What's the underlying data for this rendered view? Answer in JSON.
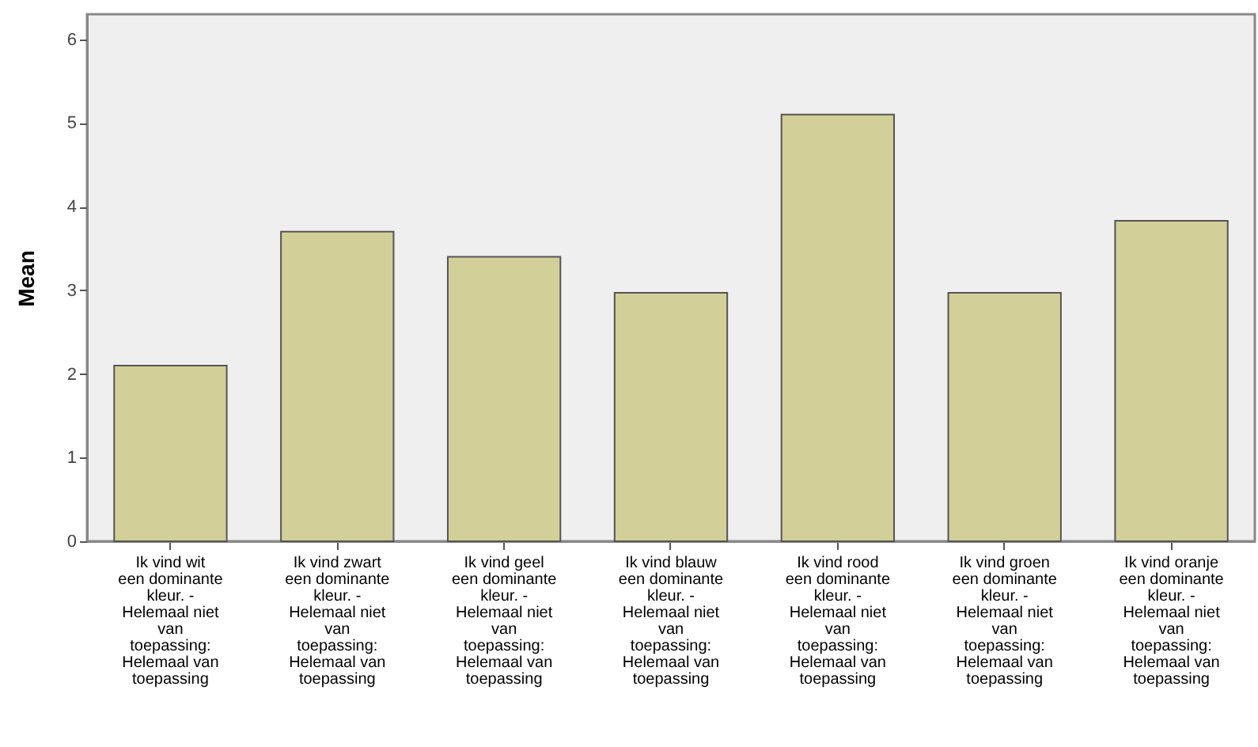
{
  "chart_data": {
    "type": "bar",
    "ylabel": "Mean",
    "categories": [
      "Ik vind wit een dominante kleur. - Helemaal niet van toepassing: Helemaal van toepassing",
      "Ik vind zwart een dominante kleur. - Helemaal niet van toepassing: Helemaal van toepassing",
      "Ik vind geel een dominante kleur. - Helemaal niet van toepassing: Helemaal van toepassing",
      "Ik vind blauw een dominante kleur. - Helemaal niet van toepassing: Helemaal van toepassing",
      "Ik vind rood een dominante kleur. - Helemaal niet van toepassing: Helemaal van toepassing",
      "Ik vind groen een dominante kleur. - Helemaal niet van toepassing: Helemaal van toepassing",
      "Ik vind oranje een dominante kleur. - Helemaal niet van toepassing: Helemaal van toepassing"
    ],
    "values": [
      2.1,
      3.7,
      3.4,
      2.97,
      5.1,
      2.97,
      3.83
    ],
    "color": "#d2cf98",
    "ylim": [
      0,
      6.3
    ],
    "yticks": [
      0,
      1,
      2,
      3,
      4,
      5,
      6
    ],
    "grid": false
  }
}
